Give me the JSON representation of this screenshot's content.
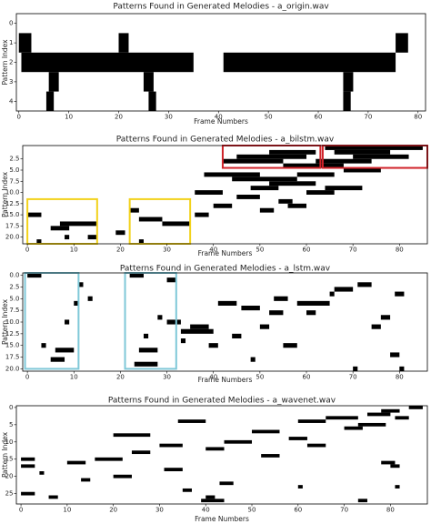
{
  "chart_data": [
    {
      "type": "pattern",
      "title": "Patterns Found in Generated Melodies - a_origin.wav",
      "xlabel": "Frame Numbers",
      "ylabel": "Pattern Index",
      "xlim": [
        -0.5,
        81.5
      ],
      "ylim": [
        4.5,
        -0.5
      ],
      "xticks": [
        0,
        10,
        20,
        30,
        40,
        50,
        60,
        70,
        80
      ],
      "yticks": [
        0,
        1,
        2,
        3,
        4
      ],
      "color": "#000000",
      "segments": [
        [
          1,
          0,
          2.5
        ],
        [
          1,
          20,
          22
        ],
        [
          1,
          75.5,
          78
        ],
        [
          2,
          0.5,
          35
        ],
        [
          2,
          41,
          75.5
        ],
        [
          3,
          6,
          8
        ],
        [
          3,
          25,
          27
        ],
        [
          3,
          65,
          67
        ],
        [
          4,
          5.5,
          7
        ],
        [
          4,
          26,
          27.5
        ],
        [
          4,
          65,
          66.5
        ]
      ],
      "highlights": []
    },
    {
      "type": "pattern",
      "title": "Patterns Found in Generated Melodies - a_bilstm.wav",
      "xlabel": "Frame Numbers",
      "ylabel": "Pattern Index",
      "xlim": [
        -1,
        86
      ],
      "ylim": [
        21.5,
        -0.5
      ],
      "xticks": [
        0,
        10,
        20,
        30,
        40,
        50,
        60,
        70,
        80
      ],
      "yticks": [
        2.5,
        {
          "value": 5,
          "label": "5.0"
        },
        7.5,
        {
          "value": 10,
          "label": "10.0"
        },
        12.5,
        {
          "value": 15,
          "label": "15.0"
        },
        17.5,
        {
          "value": 20,
          "label": "20.0"
        }
      ],
      "color": "#000000",
      "segments": [
        [
          0,
          64,
          85
        ],
        [
          1,
          52,
          62
        ],
        [
          1,
          66,
          78
        ],
        [
          2,
          45,
          60
        ],
        [
          2,
          70,
          82
        ],
        [
          3,
          42,
          55
        ],
        [
          3,
          62,
          74
        ],
        [
          4,
          55,
          68
        ],
        [
          5,
          68,
          76
        ],
        [
          6,
          38,
          50
        ],
        [
          6,
          58,
          66
        ],
        [
          7,
          44,
          58
        ],
        [
          8,
          52,
          62
        ],
        [
          9,
          48,
          54
        ],
        [
          9,
          64,
          72
        ],
        [
          10,
          36,
          42
        ],
        [
          10,
          60,
          66
        ],
        [
          11,
          45,
          50
        ],
        [
          12,
          54,
          57
        ],
        [
          13,
          40,
          44
        ],
        [
          13,
          56,
          60
        ],
        [
          14,
          50,
          53
        ],
        [
          14,
          22,
          24
        ],
        [
          15,
          0,
          3
        ],
        [
          15,
          36,
          39
        ],
        [
          16,
          24,
          29
        ],
        [
          17,
          7,
          15
        ],
        [
          17,
          29,
          35
        ],
        [
          18,
          5,
          9
        ],
        [
          19,
          19,
          21
        ],
        [
          20,
          8,
          9
        ],
        [
          20,
          13,
          15
        ],
        [
          21,
          2,
          3
        ],
        [
          21,
          24,
          25
        ]
      ],
      "highlights": [
        {
          "color": "#d0232a",
          "x": [
            42,
            63
          ],
          "y": [
            4.5,
            -0.5
          ]
        },
        {
          "color": "#d0232a",
          "x": [
            63.5,
            86
          ],
          "y": [
            4.5,
            -0.5
          ]
        },
        {
          "color": "#f2d21b",
          "x": [
            0,
            15
          ],
          "y": [
            21.5,
            11.5
          ]
        },
        {
          "color": "#f2d21b",
          "x": [
            22,
            35
          ],
          "y": [
            21.5,
            11.5
          ]
        }
      ]
    },
    {
      "type": "pattern",
      "title": "Patterns Found in Generated Melodies - a_lstm.wav",
      "xlabel": "Frame Numbers",
      "ylabel": "Pattern Index",
      "xlim": [
        -1,
        86
      ],
      "ylim": [
        20.5,
        -0.5
      ],
      "xticks": [
        0,
        10,
        20,
        30,
        40,
        50,
        60,
        70,
        80
      ],
      "yticks": [
        {
          "value": 0,
          "label": "0.0"
        },
        2.5,
        {
          "value": 5,
          "label": "5.0"
        },
        7.5,
        {
          "value": 10,
          "label": "10.0"
        },
        12.5,
        {
          "value": 15,
          "label": "15.0"
        },
        17.5,
        {
          "value": 20,
          "label": "20.0"
        }
      ],
      "color": "#000000",
      "segments": [
        [
          0,
          0,
          3
        ],
        [
          0,
          22,
          25
        ],
        [
          1,
          30,
          32
        ],
        [
          2,
          11,
          12
        ],
        [
          2,
          71,
          74
        ],
        [
          3,
          66,
          70
        ],
        [
          4,
          65,
          66
        ],
        [
          4,
          79,
          81
        ],
        [
          5,
          13,
          14
        ],
        [
          5,
          53,
          56
        ],
        [
          6,
          41,
          45
        ],
        [
          6,
          58,
          65
        ],
        [
          6,
          10,
          11
        ],
        [
          7,
          46,
          50
        ],
        [
          8,
          52,
          55
        ],
        [
          8,
          60,
          62
        ],
        [
          9,
          28,
          29
        ],
        [
          9,
          76,
          78
        ],
        [
          10,
          8,
          9
        ],
        [
          10,
          30,
          33
        ],
        [
          11,
          35,
          39
        ],
        [
          11,
          50,
          52
        ],
        [
          11,
          74,
          76
        ],
        [
          12,
          33,
          40
        ],
        [
          13,
          25,
          26
        ],
        [
          13,
          44,
          46
        ],
        [
          14,
          33,
          34
        ],
        [
          15,
          3,
          4
        ],
        [
          15,
          39,
          41
        ],
        [
          15,
          55,
          58
        ],
        [
          16,
          6,
          10
        ],
        [
          16,
          24,
          28
        ],
        [
          17,
          78,
          80
        ],
        [
          18,
          5,
          8
        ],
        [
          18,
          48,
          49
        ],
        [
          19,
          23,
          28
        ],
        [
          20,
          70,
          71
        ],
        [
          20,
          80,
          81
        ]
      ],
      "highlights": [
        {
          "color": "#7fc8d8",
          "x": [
            -0.5,
            11
          ],
          "y": [
            20,
            -0.5
          ]
        },
        {
          "color": "#7fc8d8",
          "x": [
            21,
            32
          ],
          "y": [
            20,
            -0.5
          ]
        }
      ]
    },
    {
      "type": "pattern",
      "title": "Patterns Found in Generated Melodies - a_wavenet.wav",
      "xlabel": "Frame Numbers",
      "ylabel": "Pattern Index",
      "xlim": [
        -1,
        88
      ],
      "ylim": [
        28,
        -0.5
      ],
      "xticks": [
        0,
        10,
        20,
        30,
        40,
        50,
        60,
        70,
        80
      ],
      "yticks": [
        0,
        5,
        10,
        15,
        20,
        25
      ],
      "color": "#000000",
      "segments": [
        [
          0,
          84,
          87
        ],
        [
          1,
          78,
          82
        ],
        [
          2,
          75,
          80
        ],
        [
          3,
          66,
          73
        ],
        [
          3,
          81,
          84
        ],
        [
          4,
          34,
          40
        ],
        [
          4,
          60,
          66
        ],
        [
          5,
          73,
          79
        ],
        [
          6,
          70,
          74
        ],
        [
          7,
          50,
          56
        ],
        [
          8,
          20,
          28
        ],
        [
          9,
          58,
          62
        ],
        [
          10,
          44,
          50
        ],
        [
          11,
          30,
          35
        ],
        [
          11,
          62,
          66
        ],
        [
          12,
          40,
          44
        ],
        [
          13,
          24,
          28
        ],
        [
          14,
          52,
          56
        ],
        [
          15,
          0,
          3
        ],
        [
          15,
          16,
          22
        ],
        [
          16,
          10,
          14
        ],
        [
          16,
          78,
          81
        ],
        [
          17,
          0,
          3
        ],
        [
          17,
          80,
          82
        ],
        [
          18,
          31,
          35
        ],
        [
          19,
          4,
          5
        ],
        [
          20,
          20,
          24
        ],
        [
          21,
          13,
          15
        ],
        [
          22,
          43,
          46
        ],
        [
          23,
          60,
          61
        ],
        [
          23,
          81,
          82
        ],
        [
          24,
          35,
          37
        ],
        [
          25,
          0,
          3
        ],
        [
          26,
          6,
          8
        ],
        [
          26,
          40,
          42
        ],
        [
          27,
          39,
          44
        ],
        [
          27,
          73,
          75
        ]
      ],
      "highlights": []
    }
  ]
}
